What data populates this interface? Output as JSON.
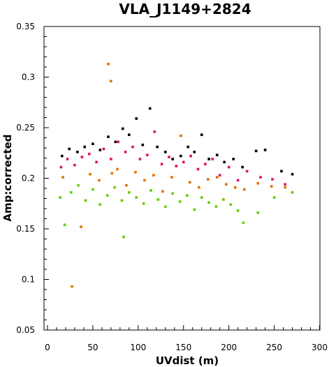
{
  "chart_data": {
    "type": "scatter",
    "title": "VLA_J1149+2824",
    "xlabel": "UVdist (m)",
    "ylabel": "Amp:corrected",
    "xlim": [
      0,
      300
    ],
    "ylim": [
      0.05,
      0.35
    ],
    "x_ticks": [
      "0",
      "50",
      "100",
      "150",
      "200",
      "250",
      "300"
    ],
    "y_ticks": [
      "0.05",
      "0.1",
      "0.15",
      "0.2",
      "0.25",
      "0.3",
      "0.35"
    ],
    "grid": false,
    "legend": "none",
    "colors": [
      "#000000",
      "#e0115f",
      "#e07000",
      "#66cc00"
    ],
    "series": [
      {
        "color": "#000000",
        "x": [
          16,
          24,
          33,
          41,
          50,
          58,
          67,
          75,
          83,
          90,
          98,
          105,
          113,
          121,
          130,
          138,
          147,
          155,
          162,
          170,
          178,
          187,
          195,
          205,
          215,
          230,
          240,
          258,
          270
        ],
        "y": [
          0.222,
          0.229,
          0.226,
          0.231,
          0.234,
          0.228,
          0.241,
          0.236,
          0.249,
          0.243,
          0.259,
          0.233,
          0.269,
          0.231,
          0.226,
          0.219,
          0.222,
          0.231,
          0.226,
          0.243,
          0.219,
          0.223,
          0.216,
          0.219,
          0.211,
          0.227,
          0.228,
          0.207,
          0.204
        ]
      },
      {
        "color": "#e0115f",
        "x": [
          15,
          22,
          30,
          38,
          46,
          54,
          62,
          70,
          78,
          86,
          94,
          102,
          110,
          118,
          126,
          134,
          142,
          150,
          158,
          166,
          174,
          182,
          190,
          200,
          210,
          220,
          235,
          248,
          262
        ],
        "y": [
          0.211,
          0.219,
          0.213,
          0.221,
          0.224,
          0.216,
          0.229,
          0.219,
          0.236,
          0.226,
          0.231,
          0.219,
          0.223,
          0.246,
          0.214,
          0.221,
          0.212,
          0.216,
          0.222,
          0.209,
          0.214,
          0.219,
          0.203,
          0.211,
          0.198,
          0.207,
          0.201,
          0.199,
          0.194
        ]
      },
      {
        "color": "#e07000",
        "x": [
          17,
          27,
          37,
          47,
          57,
          67,
          70,
          71,
          77,
          87,
          97,
          107,
          117,
          127,
          137,
          147,
          157,
          167,
          177,
          187,
          197,
          207,
          217,
          232,
          247,
          262
        ],
        "y": [
          0.201,
          0.093,
          0.152,
          0.204,
          0.198,
          0.313,
          0.296,
          0.205,
          0.209,
          0.193,
          0.206,
          0.198,
          0.203,
          0.187,
          0.201,
          0.242,
          0.196,
          0.191,
          0.199,
          0.201,
          0.194,
          0.191,
          0.189,
          0.195,
          0.192,
          0.191
        ]
      },
      {
        "color": "#66cc00",
        "x": [
          14,
          19,
          26,
          34,
          42,
          50,
          58,
          66,
          74,
          82,
          84,
          90,
          98,
          106,
          114,
          122,
          130,
          138,
          146,
          154,
          162,
          170,
          178,
          186,
          194,
          202,
          210,
          216,
          232,
          250,
          270
        ],
        "y": [
          0.181,
          0.154,
          0.186,
          0.193,
          0.178,
          0.189,
          0.174,
          0.183,
          0.191,
          0.178,
          0.142,
          0.186,
          0.181,
          0.175,
          0.188,
          0.179,
          0.172,
          0.185,
          0.177,
          0.183,
          0.169,
          0.181,
          0.176,
          0.172,
          0.179,
          0.174,
          0.168,
          0.156,
          0.166,
          0.181,
          0.186
        ]
      }
    ]
  }
}
